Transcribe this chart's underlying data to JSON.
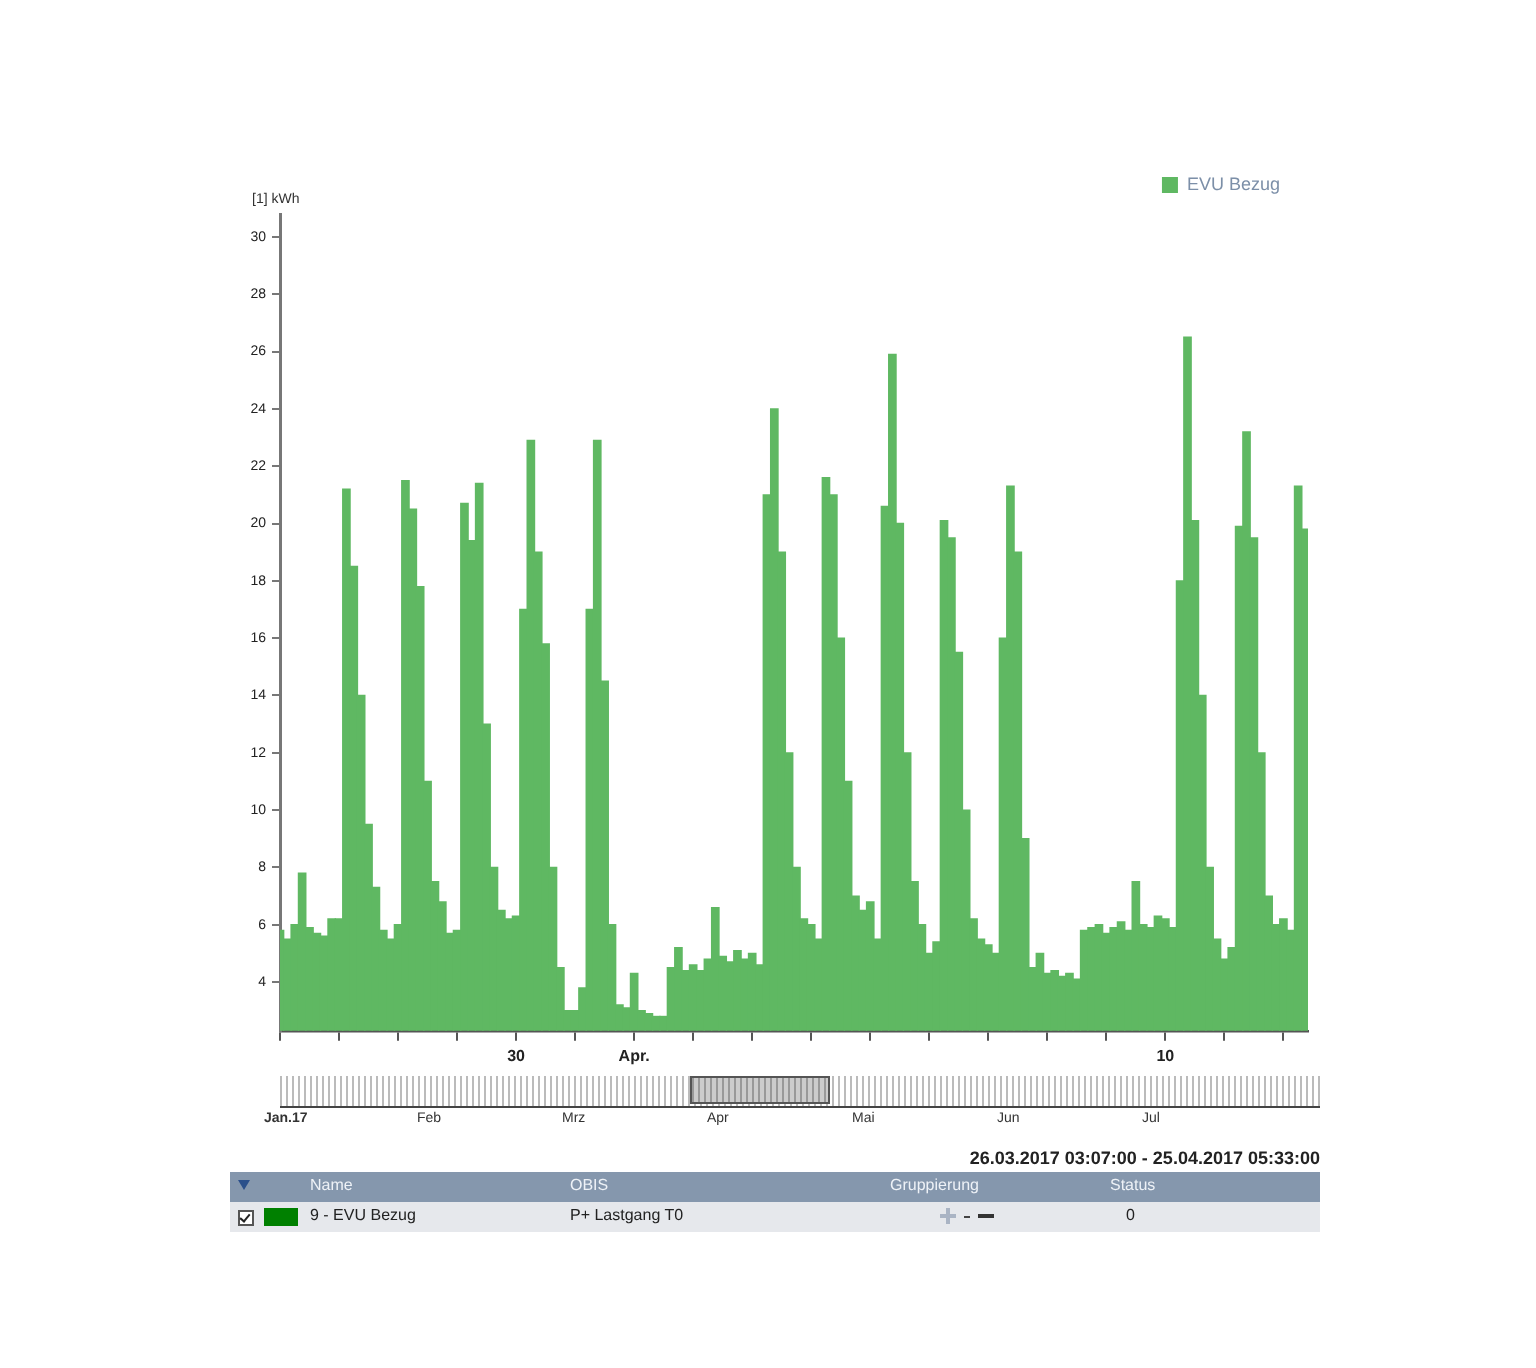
{
  "chart_data": [
    {
      "type": "bar",
      "ylabel": "[1] kWh",
      "legend": "top right",
      "xlim": [
        "2017-03-26T00:00",
        "2017-04-12T10:00"
      ],
      "ylim": [
        2.3,
        30.8
      ],
      "yticks": [
        4,
        6,
        8,
        10,
        12,
        14,
        16,
        18,
        20,
        22,
        24,
        26,
        28,
        30
      ],
      "xticks": [
        {
          "value": "2017-03-26",
          "label": null
        },
        {
          "value": "2017-03-27",
          "label": null
        },
        {
          "value": "2017-03-28",
          "label": null
        },
        {
          "value": "2017-03-29",
          "label": null
        },
        {
          "value": "2017-03-30",
          "label": "30"
        },
        {
          "value": "2017-03-31",
          "label": null
        },
        {
          "value": "2017-04-01",
          "label": "Apr."
        },
        {
          "value": "2017-04-02",
          "label": null
        },
        {
          "value": "2017-04-03",
          "label": null
        },
        {
          "value": "2017-04-04",
          "label": null
        },
        {
          "value": "2017-04-05",
          "label": null
        },
        {
          "value": "2017-04-06",
          "label": null
        },
        {
          "value": "2017-04-07",
          "label": null
        },
        {
          "value": "2017-04-08",
          "label": null
        },
        {
          "value": "2017-04-09",
          "label": null
        },
        {
          "value": "2017-04-10",
          "label": "10"
        },
        {
          "value": "2017-04-11",
          "label": null
        },
        {
          "value": "2017-04-12",
          "label": null
        }
      ],
      "x": [
        "2017-03-26T00:00",
        "2017-03-26T03:00",
        "2017-03-26T06:00",
        "2017-03-26T09:00",
        "2017-03-26T12:00",
        "2017-03-26T15:00",
        "2017-03-26T18:00",
        "2017-03-26T21:00",
        "2017-03-27T00:00",
        "2017-03-27T03:00",
        "2017-03-27T06:00",
        "2017-03-27T09:00",
        "2017-03-27T12:00",
        "2017-03-27T15:00",
        "2017-03-27T18:00",
        "2017-03-27T21:00",
        "2017-03-28T00:00",
        "2017-03-28T03:00",
        "2017-03-28T06:00",
        "2017-03-28T09:00",
        "2017-03-28T12:00",
        "2017-03-28T15:00",
        "2017-03-28T18:00",
        "2017-03-28T21:00",
        "2017-03-29T00:00",
        "2017-03-29T03:00",
        "2017-03-29T06:00",
        "2017-03-29T09:00",
        "2017-03-29T12:00",
        "2017-03-29T15:00",
        "2017-03-29T18:00",
        "2017-03-29T21:00",
        "2017-03-30T00:00",
        "2017-03-30T03:00",
        "2017-03-30T06:00",
        "2017-03-30T09:00",
        "2017-03-30T12:00",
        "2017-03-30T15:00",
        "2017-03-30T18:00",
        "2017-03-30T21:00",
        "2017-03-31T00:00",
        "2017-03-31T03:00",
        "2017-03-31T06:00",
        "2017-03-31T09:00",
        "2017-03-31T12:00",
        "2017-03-31T15:00",
        "2017-03-31T18:00",
        "2017-03-31T21:00",
        "2017-04-01T00:00",
        "2017-04-01T03:00",
        "2017-04-01T06:00",
        "2017-04-01T09:00",
        "2017-04-01T12:00",
        "2017-04-01T15:00",
        "2017-04-01T18:00",
        "2017-04-01T21:00",
        "2017-04-02T00:00",
        "2017-04-02T03:00",
        "2017-04-02T06:00",
        "2017-04-02T09:00",
        "2017-04-02T12:00",
        "2017-04-02T15:00",
        "2017-04-02T18:00",
        "2017-04-02T21:00",
        "2017-04-03T00:00",
        "2017-04-03T03:00",
        "2017-04-03T06:00",
        "2017-04-03T09:00",
        "2017-04-03T12:00",
        "2017-04-03T15:00",
        "2017-04-03T18:00",
        "2017-04-03T21:00",
        "2017-04-04T00:00",
        "2017-04-04T03:00",
        "2017-04-04T06:00",
        "2017-04-04T09:00",
        "2017-04-04T12:00",
        "2017-04-04T15:00",
        "2017-04-04T18:00",
        "2017-04-04T21:00",
        "2017-04-05T00:00",
        "2017-04-05T03:00",
        "2017-04-05T06:00",
        "2017-04-05T09:00",
        "2017-04-05T12:00",
        "2017-04-05T15:00",
        "2017-04-05T18:00",
        "2017-04-05T21:00",
        "2017-04-06T00:00",
        "2017-04-06T03:00",
        "2017-04-06T06:00",
        "2017-04-06T09:00",
        "2017-04-06T12:00",
        "2017-04-06T15:00",
        "2017-04-06T18:00",
        "2017-04-06T21:00",
        "2017-04-07T00:00",
        "2017-04-07T03:00",
        "2017-04-07T06:00",
        "2017-04-07T09:00",
        "2017-04-07T12:00",
        "2017-04-07T15:00",
        "2017-04-07T18:00",
        "2017-04-07T21:00",
        "2017-04-08T00:00",
        "2017-04-08T03:00",
        "2017-04-08T06:00",
        "2017-04-08T09:00",
        "2017-04-08T12:00",
        "2017-04-08T15:00",
        "2017-04-08T18:00",
        "2017-04-08T21:00",
        "2017-04-09T00:00",
        "2017-04-09T03:00",
        "2017-04-09T06:00",
        "2017-04-09T09:00",
        "2017-04-09T12:00",
        "2017-04-09T15:00",
        "2017-04-09T18:00",
        "2017-04-09T21:00",
        "2017-04-10T00:00",
        "2017-04-10T03:00",
        "2017-04-10T06:00",
        "2017-04-10T09:00",
        "2017-04-10T12:00",
        "2017-04-10T15:00",
        "2017-04-10T18:00",
        "2017-04-10T21:00",
        "2017-04-11T00:00",
        "2017-04-11T03:00",
        "2017-04-11T06:00",
        "2017-04-11T09:00",
        "2017-04-11T12:00",
        "2017-04-11T15:00",
        "2017-04-11T18:00",
        "2017-04-11T21:00",
        "2017-04-12T00:00",
        "2017-04-12T03:00",
        "2017-04-12T06:00",
        "2017-04-12T09:00"
      ],
      "series": [
        {
          "name": "EVU Bezug",
          "color": "#5fb862",
          "values": [
            5.8,
            5.5,
            6.0,
            7.8,
            5.9,
            5.7,
            5.6,
            6.2,
            6.2,
            21.2,
            18.5,
            14.0,
            9.5,
            7.3,
            5.8,
            5.5,
            6.0,
            21.5,
            20.5,
            17.8,
            11.0,
            7.5,
            6.8,
            5.7,
            5.8,
            20.7,
            19.4,
            21.4,
            13.0,
            8.0,
            6.5,
            6.2,
            6.3,
            17.0,
            22.9,
            19.0,
            15.8,
            8.0,
            4.5,
            3.0,
            3.0,
            3.8,
            17.0,
            22.9,
            14.5,
            6.0,
            3.2,
            3.1,
            4.3,
            3.0,
            2.9,
            2.8,
            2.8,
            4.5,
            5.2,
            4.4,
            4.6,
            4.4,
            4.8,
            6.6,
            4.9,
            4.7,
            5.1,
            4.8,
            5.0,
            4.6,
            21.0,
            24.0,
            19.0,
            12.0,
            8.0,
            6.2,
            6.0,
            5.5,
            21.6,
            21.0,
            16.0,
            11.0,
            7.0,
            6.5,
            6.8,
            5.5,
            20.6,
            25.9,
            20.0,
            12.0,
            7.5,
            6.0,
            5.0,
            5.4,
            20.1,
            19.5,
            15.5,
            10.0,
            6.2,
            5.5,
            5.3,
            5.0,
            16.0,
            21.3,
            19.0,
            9.0,
            4.5,
            5.0,
            4.3,
            4.4,
            4.2,
            4.3,
            4.1,
            5.8,
            5.9,
            6.0,
            5.7,
            5.9,
            6.1,
            5.8,
            7.5,
            6.0,
            5.9,
            6.3,
            6.2,
            5.9,
            18.0,
            26.5,
            20.1,
            14.0,
            8.0,
            5.5,
            4.8,
            5.2,
            19.9,
            23.2,
            19.5,
            12.0,
            7.0,
            6.0,
            6.2,
            5.8,
            21.3,
            19.8
          ]
        }
      ]
    },
    {
      "type": "other",
      "categories": [
        "Jan.17",
        "Feb",
        "Mrz",
        "Apr",
        "Mai",
        "Jun",
        "Jul"
      ],
      "annotations": [
        "26.03.2017 03:07:00 - 25.04.2017 05:33:00"
      ]
    },
    {
      "type": "other",
      "categories": [
        "Name",
        "OBIS",
        "Gruppierung",
        "Status"
      ],
      "annotations": [
        "9 - EVU Bezug",
        "P+ Lastgang T0",
        "0"
      ],
      "color": "#008000"
    }
  ]
}
